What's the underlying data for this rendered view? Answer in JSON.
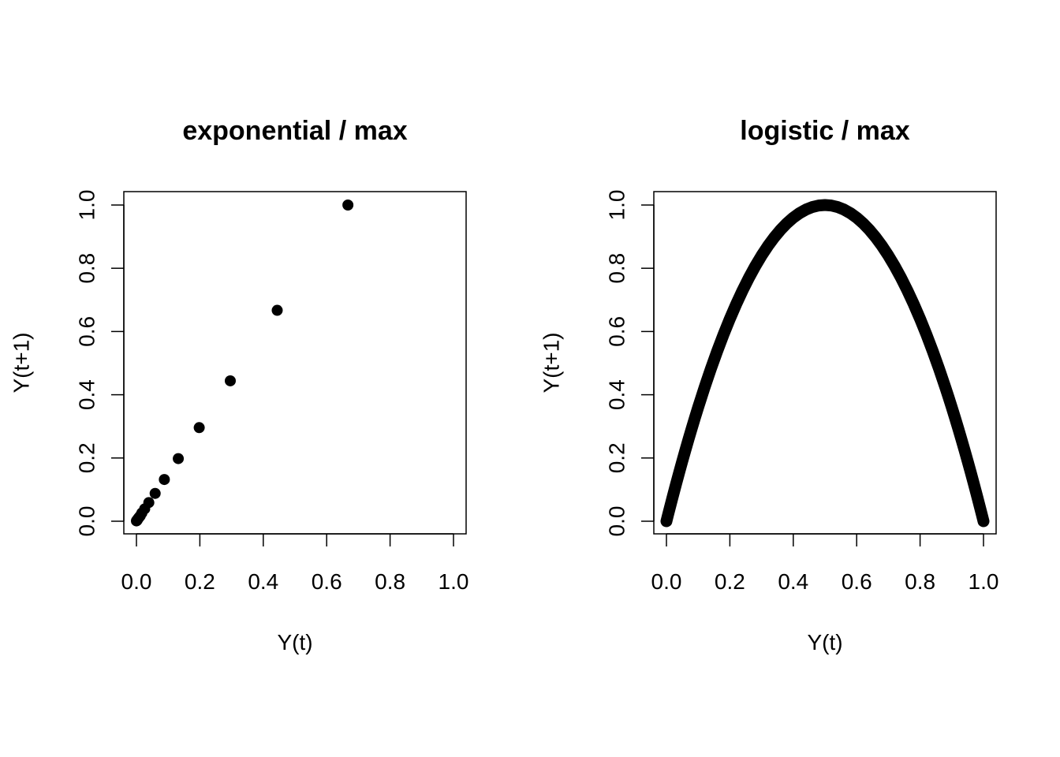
{
  "chart_data": [
    {
      "type": "scatter",
      "title": "exponential / max",
      "xlabel": "Y(t)",
      "ylabel": "Y(t+1)",
      "xlim": [
        0,
        1
      ],
      "ylim": [
        0,
        1
      ],
      "xticks": [
        "0.0",
        "0.2",
        "0.4",
        "0.6",
        "0.8",
        "1.0"
      ],
      "yticks": [
        "0.0",
        "0.2",
        "0.4",
        "0.6",
        "0.8",
        "1.0"
      ],
      "grid": false,
      "marker_color": "#000000",
      "series": [
        {
          "x": [
            0.0,
            0.001,
            0.002,
            0.003,
            0.005,
            0.008,
            0.012,
            0.017,
            0.026,
            0.039,
            0.059,
            0.088,
            0.132,
            0.198,
            0.296,
            0.444,
            0.667
          ],
          "y": [
            0.001,
            0.002,
            0.003,
            0.005,
            0.008,
            0.012,
            0.017,
            0.026,
            0.039,
            0.059,
            0.088,
            0.132,
            0.198,
            0.296,
            0.444,
            0.667,
            1.0
          ]
        }
      ]
    },
    {
      "type": "scatter",
      "title": "logistic / max",
      "xlabel": "Y(t)",
      "ylabel": "Y(t+1)",
      "xlim": [
        0,
        1
      ],
      "ylim": [
        0,
        1
      ],
      "xticks": [
        "0.0",
        "0.2",
        "0.4",
        "0.6",
        "0.8",
        "1.0"
      ],
      "yticks": [
        "0.0",
        "0.2",
        "0.4",
        "0.6",
        "0.8",
        "1.0"
      ],
      "grid": false,
      "marker_color": "#000000",
      "series": [
        {
          "x": [
            0.0,
            0.005,
            0.01,
            0.02,
            0.03,
            0.04,
            0.05,
            0.06,
            0.07,
            0.08,
            0.09,
            0.1,
            0.12,
            0.14,
            0.16,
            0.18,
            0.2,
            0.22,
            0.24,
            0.26,
            0.28,
            0.3,
            0.32,
            0.34,
            0.36,
            0.38,
            0.4,
            0.42,
            0.44,
            0.46,
            0.48,
            0.5,
            0.52,
            0.54,
            0.56,
            0.58,
            0.6,
            0.62,
            0.64,
            0.66,
            0.68,
            0.7,
            0.72,
            0.74,
            0.76,
            0.78,
            0.8,
            0.82,
            0.84,
            0.86,
            0.88,
            0.89,
            0.9,
            0.91,
            0.92,
            0.93,
            0.94,
            0.95,
            0.96,
            0.97,
            0.98,
            0.99,
            0.995,
            1.0
          ],
          "y": [
            0.0,
            0.02,
            0.0396,
            0.0784,
            0.1164,
            0.1536,
            0.19,
            0.2256,
            0.2604,
            0.2944,
            0.3276,
            0.36,
            0.4224,
            0.4816,
            0.5376,
            0.5904,
            0.64,
            0.6864,
            0.7296,
            0.7696,
            0.8064,
            0.84,
            0.8704,
            0.8976,
            0.9216,
            0.9424,
            0.96,
            0.9744,
            0.9856,
            0.9936,
            0.9984,
            1.0,
            0.9984,
            0.9936,
            0.9856,
            0.9744,
            0.96,
            0.9424,
            0.9216,
            0.8976,
            0.8704,
            0.84,
            0.8064,
            0.7696,
            0.7296,
            0.6864,
            0.64,
            0.5904,
            0.5376,
            0.4816,
            0.4224,
            0.3916,
            0.36,
            0.3276,
            0.2944,
            0.2604,
            0.2256,
            0.19,
            0.1536,
            0.1164,
            0.0784,
            0.0396,
            0.02,
            0.0
          ]
        }
      ]
    }
  ]
}
